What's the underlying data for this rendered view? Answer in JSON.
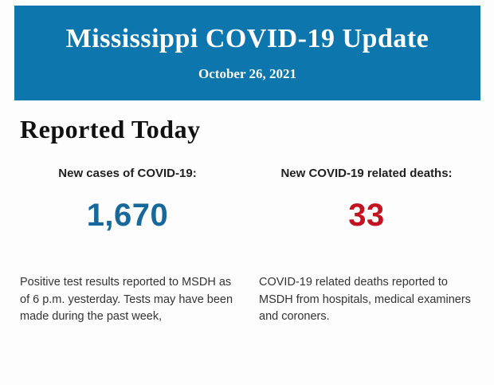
{
  "header": {
    "title": "Mississippi COVID-19 Update",
    "date": "October 26, 2021",
    "background_color": "#0d76ad",
    "text_color": "#ffffff"
  },
  "section": {
    "heading": "Reported Today"
  },
  "stats": {
    "0": {
      "label": "New cases of COVID-19:",
      "value": "1,670",
      "value_color": "#17689b",
      "description": "Positive test results reported to MSDH as of 6 p.m. yesterday. Tests may have been made during the past week,"
    },
    "1": {
      "label": "New COVID-19 related deaths:",
      "value": "33",
      "value_color": "#c11420",
      "description": "COVID-19 related deaths reported to MSDH from hospitals, medical examiners and coroners."
    }
  }
}
